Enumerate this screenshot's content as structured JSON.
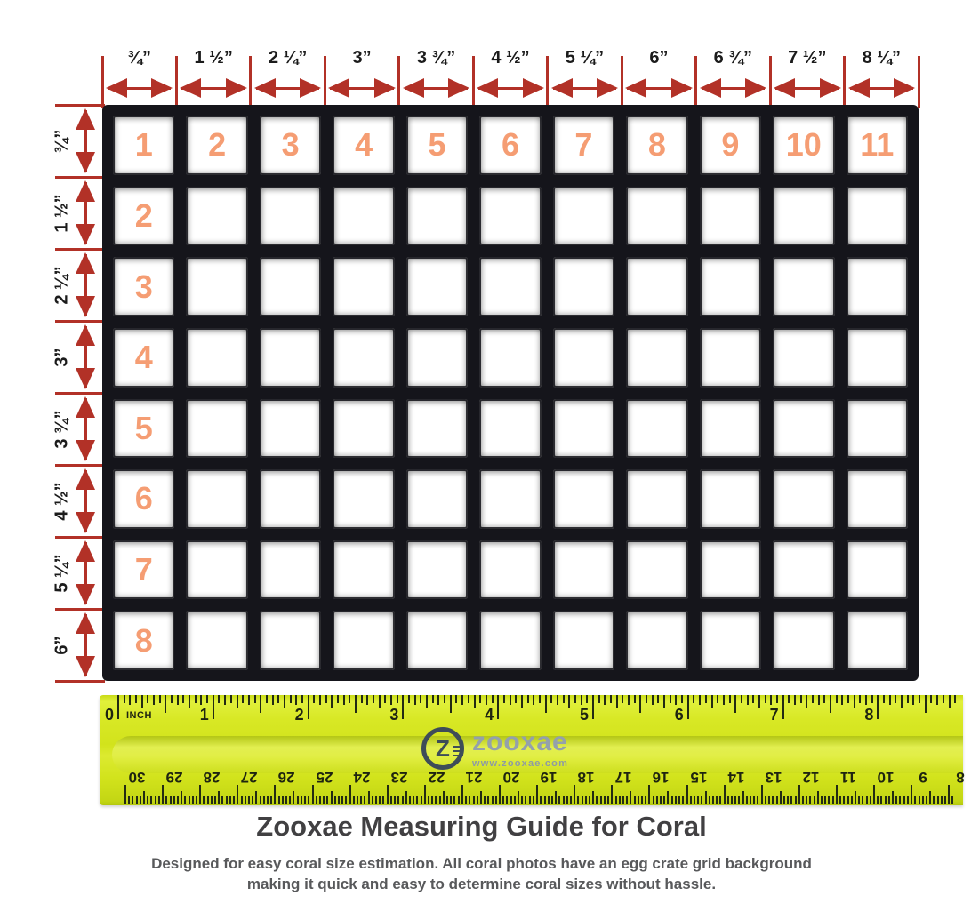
{
  "colors": {
    "arrow_red": "#b23127",
    "cell_number_orange": "#f59d73",
    "crate_black": "#15151b",
    "ruler_yellow": "#d2e31c",
    "title_gray": "#414042",
    "subtitle_gray": "#58595b",
    "logo_gray": "#94a1ab",
    "logo_dark": "#3e4d58"
  },
  "top_scale": {
    "labels": [
      "¾”",
      "1 ½”",
      "2 ¼”",
      "3”",
      "3 ¾”",
      "4 ½”",
      "5 ¼”",
      "6”",
      "6 ¾”",
      "7 ½”",
      "8 ¼”"
    ]
  },
  "left_scale": {
    "labels": [
      "¾”",
      "1 ½”",
      "2 ¼”",
      "3”",
      "3 ¾”",
      "4 ½”",
      "5 ¼”",
      "6”"
    ]
  },
  "grid": {
    "columns": 11,
    "rows": 8,
    "top_row_numbers": [
      "1",
      "2",
      "3",
      "4",
      "5",
      "6",
      "7",
      "8",
      "9",
      "10",
      "11"
    ],
    "left_column_numbers": [
      "2",
      "3",
      "4",
      "5",
      "6",
      "7",
      "8"
    ]
  },
  "ruler": {
    "inch_numbers": [
      "0",
      "1",
      "2",
      "3",
      "4",
      "5",
      "6",
      "7",
      "8"
    ],
    "inch_unit": "INCH",
    "cm_numbers": [
      "30",
      "29",
      "28",
      "27",
      "26",
      "25",
      "24",
      "23",
      "22",
      "21",
      "20",
      "19",
      "18",
      "17",
      "16",
      "15",
      "14",
      "13",
      "12",
      "11",
      "10",
      "9",
      "8"
    ],
    "logo": {
      "initial": "Z",
      "wordmark": "zooxae",
      "url": "www.zooxae.com"
    }
  },
  "caption": {
    "title": "Zooxae Measuring Guide for Coral",
    "subtitle_line1": "Designed for easy coral size estimation. All coral photos have an egg crate grid background",
    "subtitle_line2": "making it quick and easy to determine coral sizes without hassle."
  }
}
